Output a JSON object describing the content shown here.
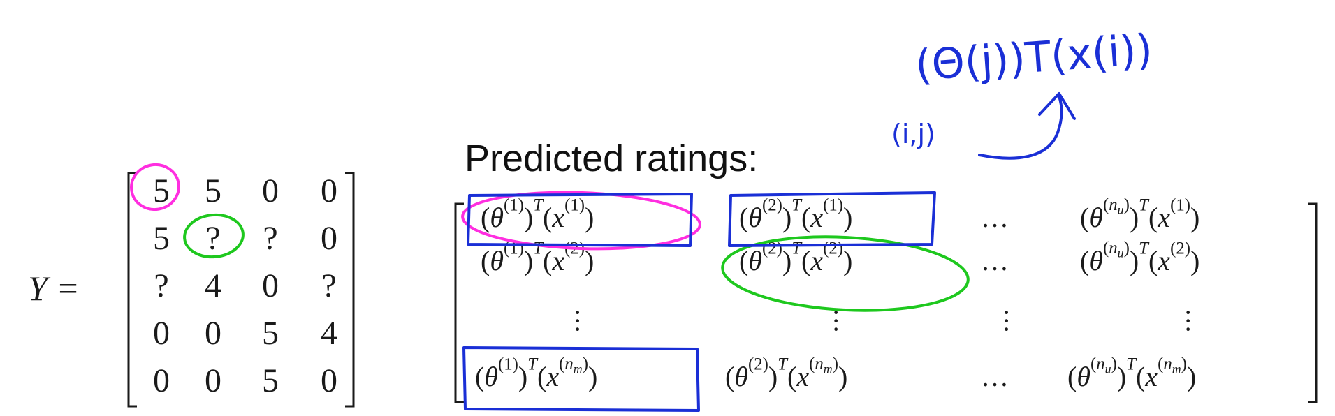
{
  "y_matrix": {
    "label": "Y =",
    "rows": [
      [
        "5",
        "5",
        "0",
        "0"
      ],
      [
        "5",
        "?",
        "?",
        "0"
      ],
      [
        "?",
        "4",
        "0",
        "?"
      ],
      [
        "0",
        "0",
        "5",
        "4"
      ],
      [
        "0",
        "0",
        "5",
        "0"
      ]
    ]
  },
  "predicted": {
    "title": "Predicted ratings:",
    "dots": "…"
  },
  "annotations": {
    "top_formula": "(Θ(j))T(x(i))",
    "index_label": "(i,j)",
    "colors": {
      "blue": "#1a2fd6",
      "pink": "#ff2ee0",
      "green": "#1ec81e"
    }
  }
}
